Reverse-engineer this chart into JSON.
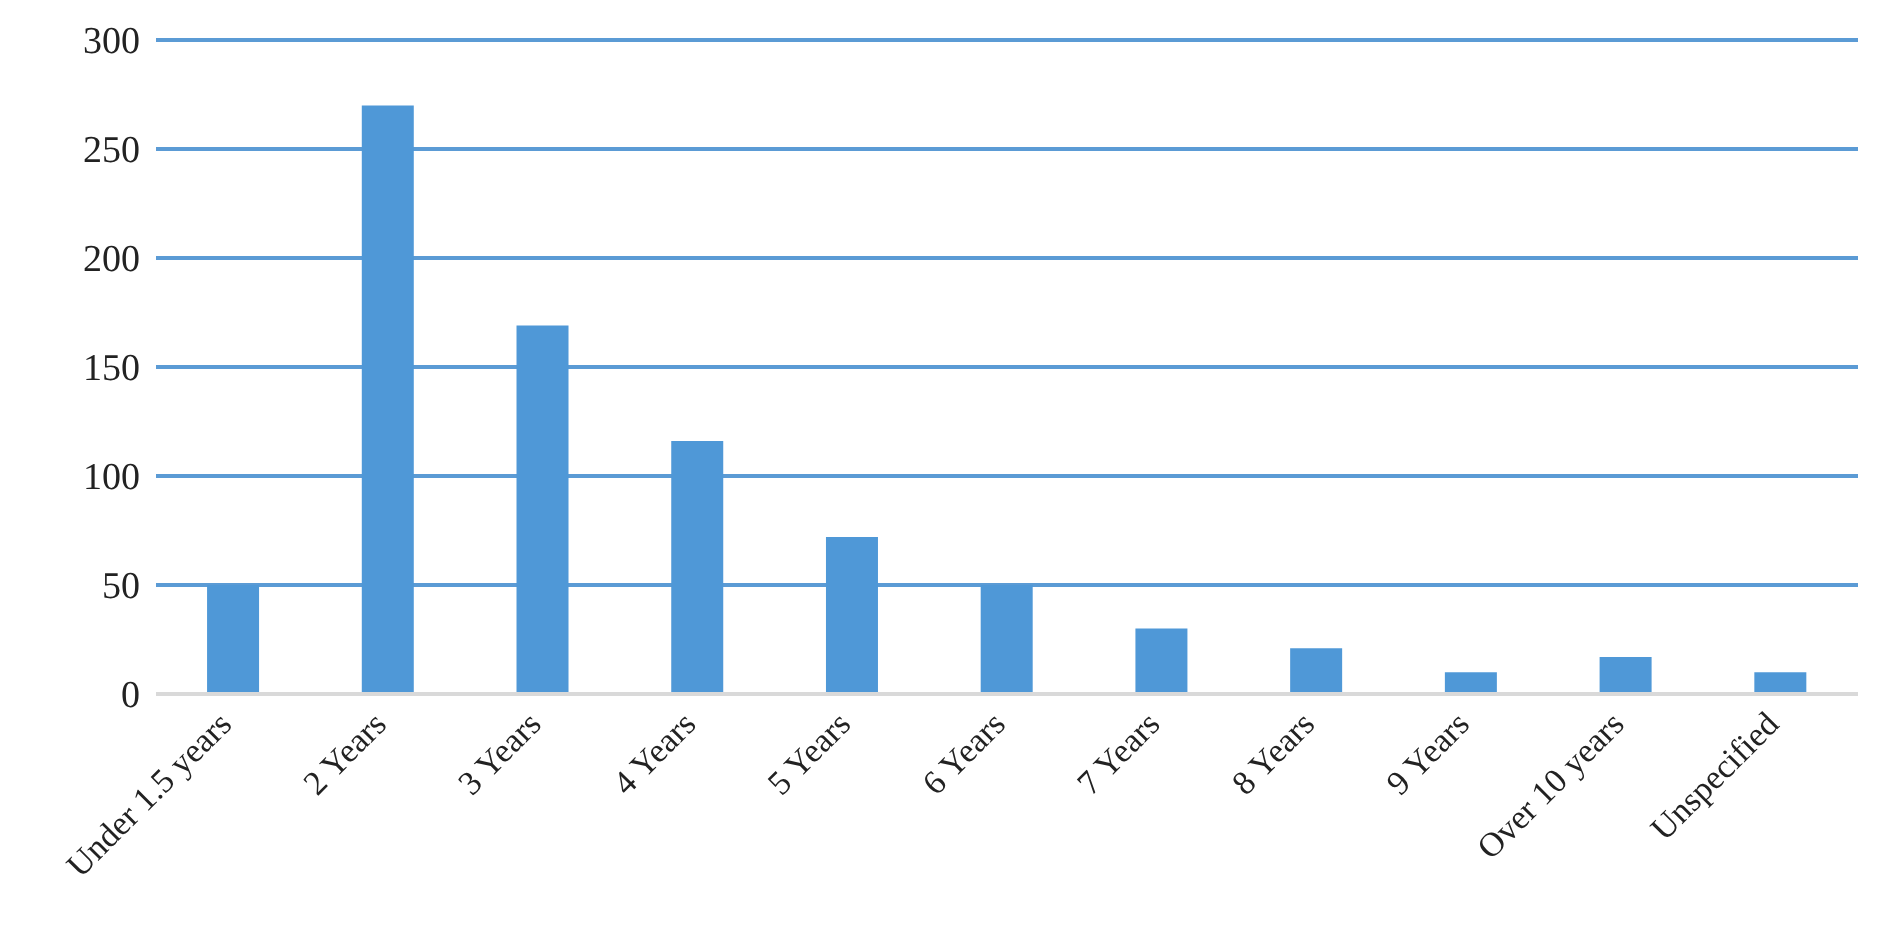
{
  "chart_data": {
    "type": "bar",
    "categories": [
      "Under 1.5 years",
      "2 Years",
      "3 Years",
      "4 Years",
      "5 Years",
      "6 Years",
      "7 Years",
      "8 Years",
      "9 Years",
      "Over 10 years",
      "Unspecified"
    ],
    "values": [
      50,
      270,
      169,
      116,
      72,
      50,
      30,
      21,
      10,
      17,
      10
    ],
    "color": "#4f98d7",
    "ylim": [
      0,
      300
    ],
    "yticks": [
      0,
      50,
      100,
      150,
      200,
      250,
      300
    ],
    "grid": "y"
  }
}
